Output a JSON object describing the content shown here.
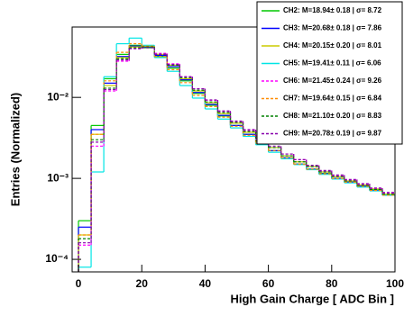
{
  "chart_data": {
    "type": "histogram",
    "x_label": "High Gain Charge [ ADC Bin ]",
    "y_label": "Entries (Normalized)",
    "bins": [
      0,
      4,
      8,
      12,
      16,
      20,
      24,
      28,
      32,
      36,
      40,
      44,
      48,
      52,
      56,
      60,
      64,
      68,
      72,
      76,
      80,
      84,
      88,
      92,
      96,
      100
    ],
    "xlim": [
      -2,
      100
    ],
    "xticks": [
      0,
      20,
      40,
      60,
      80,
      100
    ],
    "ylim": [
      7e-05,
      0.074
    ],
    "log_y": true,
    "yticks": [
      {
        "value": 0.0001,
        "label": "10⁻⁴"
      },
      {
        "value": 0.001,
        "label": "10⁻³"
      },
      {
        "value": 0.01,
        "label": "10⁻²"
      }
    ],
    "legend": "upper right",
    "series": [
      {
        "name": "CH2: M=18.94± 0.18 | σ= 8.72",
        "color": "#00c800",
        "line_style": "solid",
        "values": [
          0.0003,
          0.0045,
          0.017,
          0.034,
          0.044,
          0.041,
          0.032,
          0.023,
          0.016,
          0.0112,
          0.008,
          0.0059,
          0.0045,
          0.0035,
          0.0027,
          0.0022,
          0.0018,
          0.0015,
          0.0013,
          0.00115,
          0.001,
          0.0009,
          0.0008,
          0.00072,
          0.00063
        ]
      },
      {
        "name": "CH3: M=20.68± 0.18 | σ= 7.86",
        "color": "#0000ff",
        "line_style": "solid",
        "values": [
          0.00025,
          0.004,
          0.015,
          0.032,
          0.043,
          0.042,
          0.033,
          0.024,
          0.0165,
          0.0115,
          0.0082,
          0.006,
          0.0045,
          0.0035,
          0.0027,
          0.0022,
          0.0018,
          0.0015,
          0.0013,
          0.00114,
          0.001,
          0.0009,
          0.0008,
          0.00071,
          0.00062
        ]
      },
      {
        "name": "CH4: M=20.15± 0.20 | σ= 8.01",
        "color": "#cccc00",
        "line_style": "solid",
        "values": [
          0.0002,
          0.0035,
          0.014,
          0.031,
          0.042,
          0.043,
          0.034,
          0.025,
          0.017,
          0.012,
          0.0086,
          0.0063,
          0.0048,
          0.0037,
          0.0029,
          0.0024,
          0.0019,
          0.0016,
          0.0014,
          0.0012,
          0.00105,
          0.00093,
          0.00083,
          0.00074,
          0.00064
        ]
      },
      {
        "name": "CH5: M=19.41± 0.11 | σ= 6.06",
        "color": "#00e5e5",
        "line_style": "solid",
        "values": [
          8e-05,
          0.0012,
          0.018,
          0.046,
          0.054,
          0.044,
          0.031,
          0.021,
          0.014,
          0.0098,
          0.0072,
          0.0054,
          0.0042,
          0.0033,
          0.0026,
          0.0021,
          0.00175,
          0.00148,
          0.00128,
          0.00112,
          0.00098,
          0.00088,
          0.00078,
          0.0007,
          0.00062
        ]
      },
      {
        "name": "CH6: M=21.45± 0.24 | σ= 9.26",
        "color": "#ff00ff",
        "line_style": "dashed",
        "values": [
          0.00015,
          0.0025,
          0.012,
          0.028,
          0.04,
          0.042,
          0.035,
          0.026,
          0.018,
          0.0128,
          0.0092,
          0.0067,
          0.005,
          0.0039,
          0.003,
          0.0024,
          0.002,
          0.0017,
          0.0014,
          0.00122,
          0.00107,
          0.00095,
          0.00084,
          0.00075,
          0.00066
        ]
      },
      {
        "name": "CH7: M=19.64± 0.15 | σ= 6.84",
        "color": "#ff8c00",
        "line_style": "dashed",
        "values": [
          0.0002,
          0.0035,
          0.016,
          0.036,
          0.046,
          0.043,
          0.032,
          0.022,
          0.0152,
          0.0106,
          0.0077,
          0.0057,
          0.0044,
          0.0034,
          0.0027,
          0.0022,
          0.0018,
          0.0015,
          0.0013,
          0.00114,
          0.001,
          0.0009,
          0.0008,
          0.00071,
          0.00062
        ]
      },
      {
        "name": "CH8: M=21.10± 0.20 | σ= 8.83",
        "color": "#008000",
        "line_style": "dashed",
        "values": [
          0.00018,
          0.003,
          0.013,
          0.03,
          0.041,
          0.042,
          0.034,
          0.025,
          0.0175,
          0.0123,
          0.0088,
          0.0065,
          0.0049,
          0.0038,
          0.0029,
          0.0024,
          0.0019,
          0.0016,
          0.0014,
          0.0012,
          0.00105,
          0.00093,
          0.00082,
          0.00073,
          0.00064
        ]
      },
      {
        "name": "CH9: M=20.78± 0.19 | σ= 9.87",
        "color": "#8800aa",
        "line_style": "dashed",
        "values": [
          0.00016,
          0.0028,
          0.0125,
          0.029,
          0.04,
          0.041,
          0.034,
          0.0255,
          0.018,
          0.0128,
          0.0093,
          0.0068,
          0.0051,
          0.004,
          0.0031,
          0.0025,
          0.002,
          0.0017,
          0.00145,
          0.00125,
          0.0011,
          0.00097,
          0.00086,
          0.00076,
          0.00067
        ]
      }
    ]
  }
}
